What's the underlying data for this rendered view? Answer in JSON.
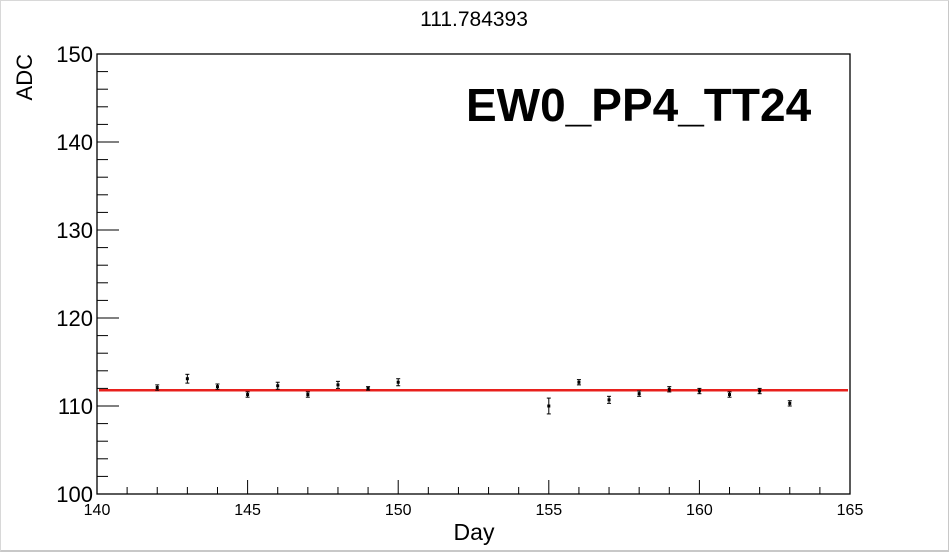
{
  "chart_data": {
    "type": "scatter",
    "title": "111.784393",
    "label": "EW0_PP4_TT24",
    "xlabel": "Day",
    "ylabel": "ADC",
    "xlim": [
      140,
      165
    ],
    "ylim": [
      100,
      150
    ],
    "x_ticks": [
      140,
      145,
      150,
      155,
      160,
      165
    ],
    "y_ticks": [
      100,
      110,
      120,
      130,
      140,
      150
    ],
    "grid": false,
    "fit_value": 111.784393,
    "fit_color": "#e8201c",
    "marker_color": "#000000",
    "points": [
      {
        "x": 142,
        "y": 112.1,
        "err": 0.3
      },
      {
        "x": 143,
        "y": 113.1,
        "err": 0.5
      },
      {
        "x": 144,
        "y": 112.2,
        "err": 0.3
      },
      {
        "x": 145,
        "y": 111.3,
        "err": 0.3
      },
      {
        "x": 146,
        "y": 112.3,
        "err": 0.4
      },
      {
        "x": 147,
        "y": 111.3,
        "err": 0.3
      },
      {
        "x": 148,
        "y": 112.4,
        "err": 0.4
      },
      {
        "x": 149,
        "y": 112.0,
        "err": 0.2
      },
      {
        "x": 150,
        "y": 112.7,
        "err": 0.4
      },
      {
        "x": 155,
        "y": 110.0,
        "err": 0.9
      },
      {
        "x": 156,
        "y": 112.7,
        "err": 0.3
      },
      {
        "x": 157,
        "y": 110.7,
        "err": 0.4
      },
      {
        "x": 158,
        "y": 111.4,
        "err": 0.3
      },
      {
        "x": 159,
        "y": 111.9,
        "err": 0.3
      },
      {
        "x": 160,
        "y": 111.7,
        "err": 0.3
      },
      {
        "x": 161,
        "y": 111.3,
        "err": 0.3
      },
      {
        "x": 162,
        "y": 111.7,
        "err": 0.3
      },
      {
        "x": 163,
        "y": 110.3,
        "err": 0.3
      }
    ]
  }
}
